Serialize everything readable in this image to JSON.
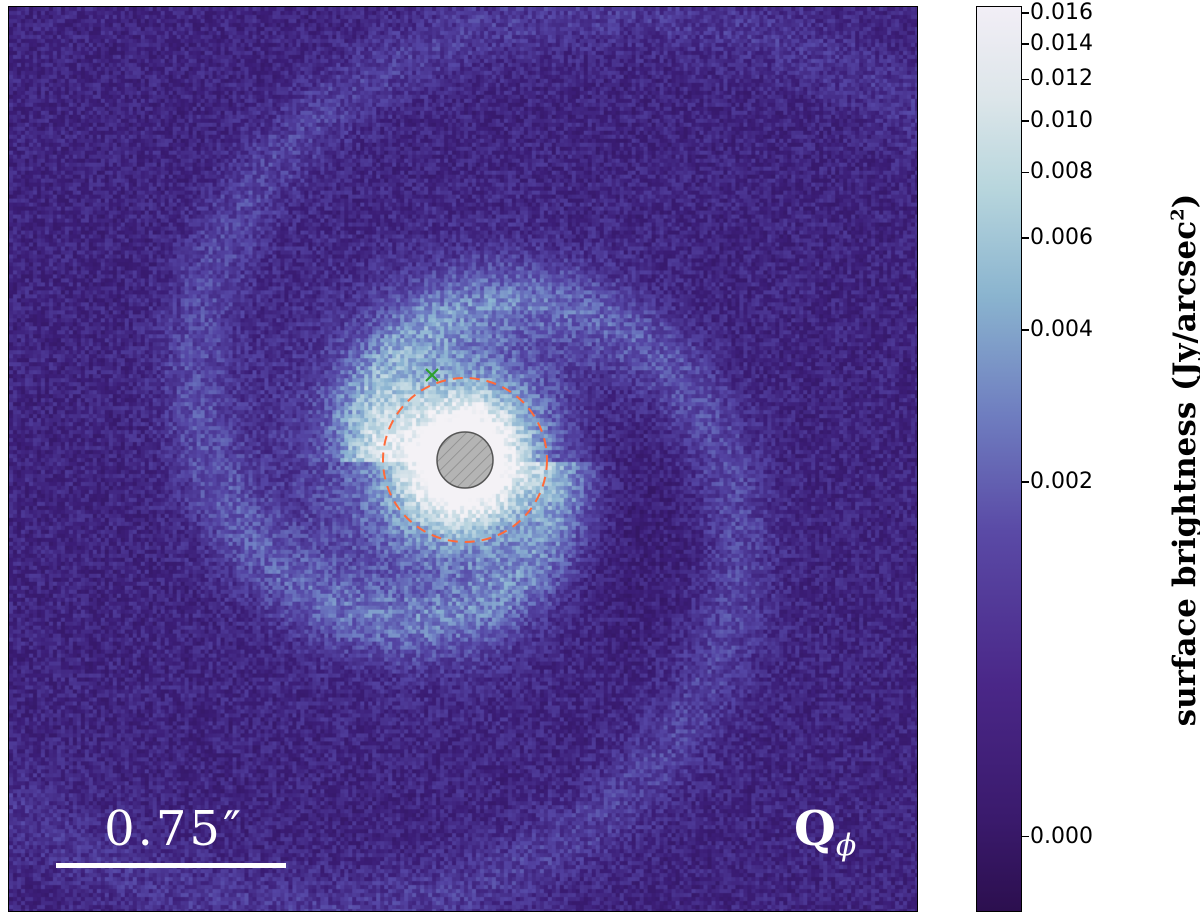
{
  "image": {
    "scalebar_label": "0.75″",
    "stokes_symbol": "Q",
    "stokes_subscript": "ϕ",
    "colors": {
      "background": "#3a1d78",
      "disk_light": "#9ec6d8",
      "core": "#f4f2f6",
      "coronagraph_mask": "#b4b4b4",
      "dashed_circle": "#ff6a3a",
      "marker": "#2ca02c"
    }
  },
  "colorbar": {
    "title_main": "surface brightness (Jy/arcsec",
    "title_exp": "2",
    "title_close": ")",
    "ticks": [
      {
        "label": "0.016",
        "value": 0.016
      },
      {
        "label": "0.014",
        "value": 0.014
      },
      {
        "label": "0.012",
        "value": 0.012
      },
      {
        "label": "0.010",
        "value": 0.01
      },
      {
        "label": "0.008",
        "value": 0.008
      },
      {
        "label": "0.006",
        "value": 0.006
      },
      {
        "label": "0.004",
        "value": 0.004
      },
      {
        "label": "0.002",
        "value": 0.002
      },
      {
        "label": "0.000",
        "value": 0.0
      }
    ]
  }
}
